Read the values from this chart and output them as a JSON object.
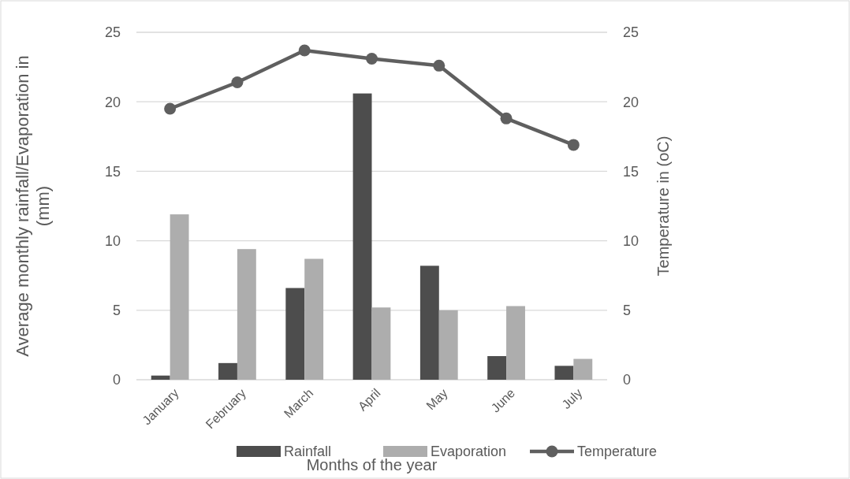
{
  "chart_data": {
    "type": "bar",
    "xlabel": "Months of the year",
    "ylabel": "Average monthly rainfall/Evaporation  in\n(mm)",
    "y2label": "Temperature in (oC)",
    "categories": [
      "January",
      "February",
      "March",
      "April",
      "May",
      "June",
      "July"
    ],
    "series": [
      {
        "name": "Rainfall",
        "color": "#4d4d4d",
        "values": [
          0.3,
          1.2,
          6.6,
          20.6,
          8.2,
          1.7,
          1.0
        ]
      },
      {
        "name": "Evaporation",
        "color": "#adadad",
        "values": [
          11.9,
          9.4,
          8.7,
          5.2,
          5.0,
          5.3,
          1.5
        ]
      },
      {
        "name": "Temperature",
        "type": "line",
        "axis": "y2",
        "color": "#5f5f5f",
        "values": [
          19.5,
          21.4,
          23.7,
          23.1,
          22.6,
          18.8,
          16.9
        ]
      }
    ],
    "ylim": [
      0,
      25
    ],
    "yticks": [
      0,
      5,
      10,
      15,
      20,
      25
    ],
    "y2lim": [
      0,
      25
    ],
    "y2ticks": [
      0,
      5,
      10,
      15,
      20,
      25
    ],
    "grid": "y",
    "legend": "bottom",
    "marker": "circle",
    "line_style": "solid"
  }
}
